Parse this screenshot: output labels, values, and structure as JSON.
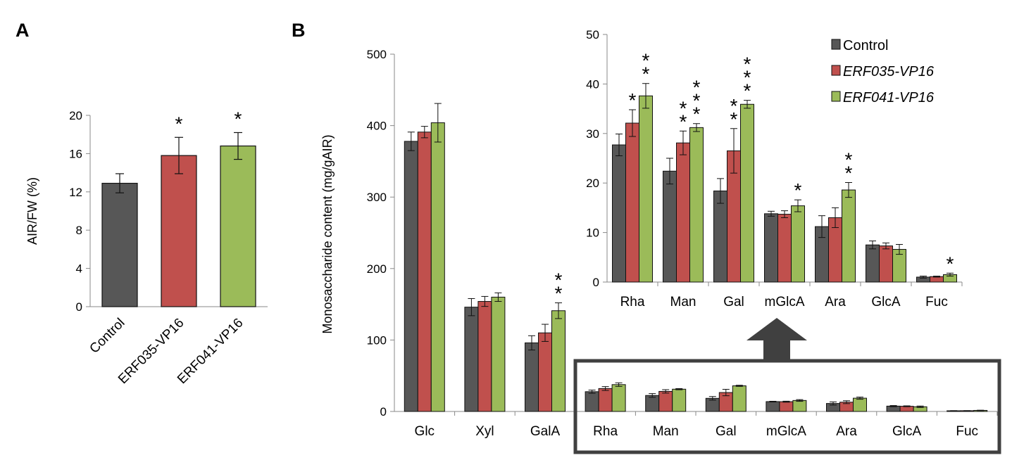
{
  "colors": {
    "control": "#575757",
    "erf035": "#c0504d",
    "erf041": "#9bbb59",
    "arrow": "#404040",
    "box": "#404040"
  },
  "chart_data": [
    {
      "id": "A",
      "panel_label": "A",
      "type": "bar",
      "ylabel": "AIR/FW (%)",
      "ylim": [
        0,
        20
      ],
      "yticks": [
        "0",
        "4",
        "8",
        "12",
        "16",
        "20"
      ],
      "categories": [
        "Control",
        "ERF035-VP16",
        "ERF041-VP16"
      ],
      "values": [
        12.9,
        15.8,
        16.8
      ],
      "errors": [
        1.0,
        1.9,
        1.4
      ],
      "significance": [
        "",
        "*",
        "*"
      ],
      "color_keys": [
        "control",
        "erf035",
        "erf041"
      ]
    },
    {
      "id": "B-main",
      "panel_label": "B",
      "type": "bar",
      "ylabel": "Monosaccharide content (mg/gAIR)",
      "ylim": [
        0,
        500
      ],
      "yticks": [
        "0",
        "100",
        "200",
        "300",
        "400",
        "500"
      ],
      "categories": [
        "Glc",
        "Xyl",
        "GalA",
        "Rha",
        "Man",
        "Gal",
        "mGlcA",
        "Ara",
        "GlcA",
        "Fuc"
      ],
      "series": [
        {
          "name": "Control",
          "color_key": "control",
          "values": [
            378,
            146,
            96,
            27.7,
            22.4,
            18.4,
            13.8,
            11.2,
            7.5,
            1.0
          ],
          "errors": [
            13,
            12,
            10,
            2.2,
            2.6,
            2.5,
            0.5,
            2.2,
            0.8,
            0.2
          ]
        },
        {
          "name": "ERF035-VP16",
          "color_key": "erf035",
          "values": [
            391,
            154,
            110,
            32.1,
            28.1,
            26.5,
            13.7,
            13.0,
            7.3,
            1.1
          ],
          "errors": [
            8,
            7,
            12,
            2.7,
            2.4,
            4.5,
            0.7,
            2.0,
            0.6,
            0.1
          ]
        },
        {
          "name": "ERF041-VP16",
          "color_key": "erf041",
          "values": [
            404,
            160,
            141,
            37.6,
            31.2,
            35.9,
            15.4,
            18.6,
            6.6,
            1.5
          ],
          "errors": [
            27,
            6,
            11,
            2.5,
            0.8,
            0.8,
            1.2,
            1.5,
            1.0,
            0.3
          ]
        }
      ],
      "significance": [
        {
          "category": "GalA",
          "series": "ERF041-VP16",
          "label": "**"
        }
      ]
    },
    {
      "id": "B-inset",
      "type": "bar",
      "ylim": [
        0,
        50
      ],
      "yticks": [
        "0",
        "10",
        "20",
        "30",
        "40",
        "50"
      ],
      "categories": [
        "Rha",
        "Man",
        "Gal",
        "mGlcA",
        "Ara",
        "GlcA",
        "Fuc"
      ],
      "legend": {
        "position": "top-right",
        "entries": [
          {
            "label": "Control",
            "color_key": "control",
            "italic": false
          },
          {
            "label": "ERF035-VP16",
            "color_key": "erf035",
            "italic": true
          },
          {
            "label": "ERF041-VP16",
            "color_key": "erf041",
            "italic": true
          }
        ]
      },
      "series": [
        {
          "name": "Control",
          "color_key": "control",
          "values": [
            27.7,
            22.4,
            18.4,
            13.8,
            11.2,
            7.5,
            1.0
          ],
          "errors": [
            2.2,
            2.6,
            2.5,
            0.5,
            2.2,
            0.8,
            0.2
          ]
        },
        {
          "name": "ERF035-VP16",
          "color_key": "erf035",
          "values": [
            32.1,
            28.1,
            26.5,
            13.7,
            13.0,
            7.3,
            1.1
          ],
          "errors": [
            2.7,
            2.4,
            4.5,
            0.7,
            2.0,
            0.6,
            0.1
          ]
        },
        {
          "name": "ERF041-VP16",
          "color_key": "erf041",
          "values": [
            37.6,
            31.2,
            35.9,
            15.4,
            18.6,
            6.6,
            1.5
          ],
          "errors": [
            2.5,
            0.8,
            0.8,
            1.2,
            1.5,
            1.0,
            0.3
          ]
        }
      ],
      "significance": [
        {
          "category": "Rha",
          "series": "ERF035-VP16",
          "label": "*"
        },
        {
          "category": "Rha",
          "series": "ERF041-VP16",
          "label": "**"
        },
        {
          "category": "Man",
          "series": "ERF035-VP16",
          "label": "**"
        },
        {
          "category": "Man",
          "series": "ERF041-VP16",
          "label": "***"
        },
        {
          "category": "Gal",
          "series": "ERF035-VP16",
          "label": "**"
        },
        {
          "category": "Gal",
          "series": "ERF041-VP16",
          "label": "***"
        },
        {
          "category": "mGlcA",
          "series": "ERF041-VP16",
          "label": "*"
        },
        {
          "category": "Ara",
          "series": "ERF041-VP16",
          "label": "**"
        },
        {
          "category": "Fuc",
          "series": "ERF041-VP16",
          "label": "*"
        }
      ]
    }
  ]
}
